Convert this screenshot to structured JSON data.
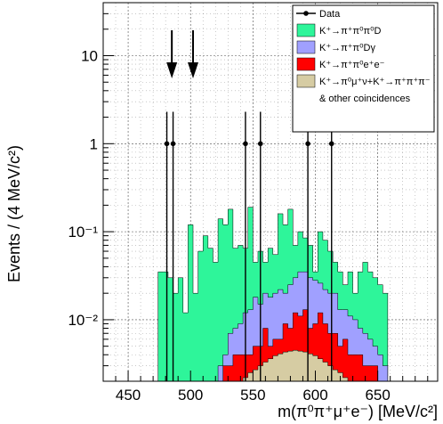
{
  "chart_data": {
    "type": "histogram",
    "xlabel": "m(π⁰π⁺μ⁺e⁻) [MeV/c²]",
    "ylabel": "Events / (4 MeV/c²)",
    "xlim": [
      430,
      698
    ],
    "ylim": [
      0.002,
      40
    ],
    "yscale": "log",
    "grid": true,
    "legend_placement": "top-right",
    "bin_width": 4,
    "xticks": [
      "450",
      "500",
      "550",
      "600",
      "650"
    ],
    "yticks": [
      "10⁻²",
      "10⁻¹",
      "1",
      "10"
    ],
    "bin_edges_start": 474,
    "series": [
      {
        "name": "K⁺→π⁺π⁰π⁰D",
        "color": "#2ef59a",
        "stack_top": [
          0.035,
          0.035,
          0.03,
          0.02,
          0.03,
          0.012,
          0.12,
          0.02,
          0.06,
          0.09,
          0.065,
          0.045,
          0.14,
          0.12,
          0.18,
          0.065,
          0.07,
          0.065,
          0.19,
          0.045,
          0.06,
          0.045,
          0.065,
          0.055,
          0.16,
          0.12,
          0.18,
          0.07,
          0.1,
          0.085,
          0.07,
          0.035,
          0.1,
          0.08,
          0.06,
          0.045,
          0.035,
          0.025,
          0.035,
          0.02,
          0.035,
          0.045,
          0.035,
          0.03,
          0.025,
          0.02
        ]
      },
      {
        "name": "K⁺→π⁺π⁰Dγ",
        "color": "#a0a0ff",
        "stack_top": [
          0,
          0,
          0,
          0,
          0,
          0,
          0,
          0,
          0,
          0,
          0,
          0,
          0.003,
          0.004,
          0.007,
          0.008,
          0.009,
          0.012,
          0.013,
          0.018,
          0.015,
          0.02,
          0.018,
          0.02,
          0.022,
          0.02,
          0.025,
          0.03,
          0.035,
          0.035,
          0.03,
          0.028,
          0.026,
          0.022,
          0.02,
          0.02,
          0.013,
          0.013,
          0.011,
          0.01,
          0.008,
          0.007,
          0.006,
          0.005,
          0.004,
          0.003
        ]
      },
      {
        "name": "K⁺→π⁺π⁰e⁺e⁻",
        "color": "#ff0000",
        "stack_top": [
          0,
          0,
          0,
          0,
          0,
          0,
          0,
          0,
          0,
          0,
          0,
          0,
          0,
          0.003,
          0.003,
          0.004,
          0.004,
          0.004,
          0.004,
          0.005,
          0.005,
          0.008,
          0.005,
          0.006,
          0.006,
          0.009,
          0.008,
          0.012,
          0.011,
          0.013,
          0.008,
          0.009,
          0.012,
          0.009,
          0.007,
          0.007,
          0.005,
          0.006,
          0.004,
          0.004,
          0.004,
          0.003,
          0.003,
          0.003,
          0.002,
          0.002
        ]
      },
      {
        "name": "K⁺→π⁰μ⁺ν+K⁺→π⁺π⁺π⁻",
        "color": "#d6cca3",
        "stack_top": [
          0,
          0,
          0,
          0,
          0,
          0,
          0,
          0,
          0,
          0,
          0,
          0,
          0,
          0,
          0,
          0,
          0.002,
          0.0022,
          0.0025,
          0.0027,
          0.003,
          0.0033,
          0.0036,
          0.0039,
          0.0041,
          0.0043,
          0.0044,
          0.0045,
          0.0044,
          0.0043,
          0.0041,
          0.0039,
          0.0036,
          0.0033,
          0.003,
          0.0027,
          0.0025,
          0.0022,
          0.002,
          0,
          0,
          0,
          0,
          0,
          0,
          0
        ]
      }
    ],
    "data_points": [
      {
        "x": 481,
        "y": 1
      },
      {
        "x": 486,
        "y": 1
      },
      {
        "x": 544,
        "y": 1
      },
      {
        "x": 556,
        "y": 1
      },
      {
        "x": 594,
        "y": 1
      },
      {
        "x": 613,
        "y": 1
      }
    ],
    "arrows_x": [
      485,
      502
    ],
    "legend": [
      {
        "label": "Data",
        "kind": "marker"
      },
      {
        "label": "K⁺→π⁺π⁰π⁰D",
        "kind": "box",
        "color": "#2ef59a"
      },
      {
        "label": "K⁺→π⁺π⁰Dγ",
        "kind": "box",
        "color": "#a0a0ff"
      },
      {
        "label": "K⁺→π⁺π⁰e⁺e⁻",
        "kind": "box",
        "color": "#ff0000"
      },
      {
        "label": "K⁺→π⁰μ⁺ν+K⁺→π⁺π⁺π⁻",
        "kind": "box",
        "color": "#d6cca3"
      },
      {
        "label": "& other coincidences",
        "kind": "text"
      }
    ]
  }
}
